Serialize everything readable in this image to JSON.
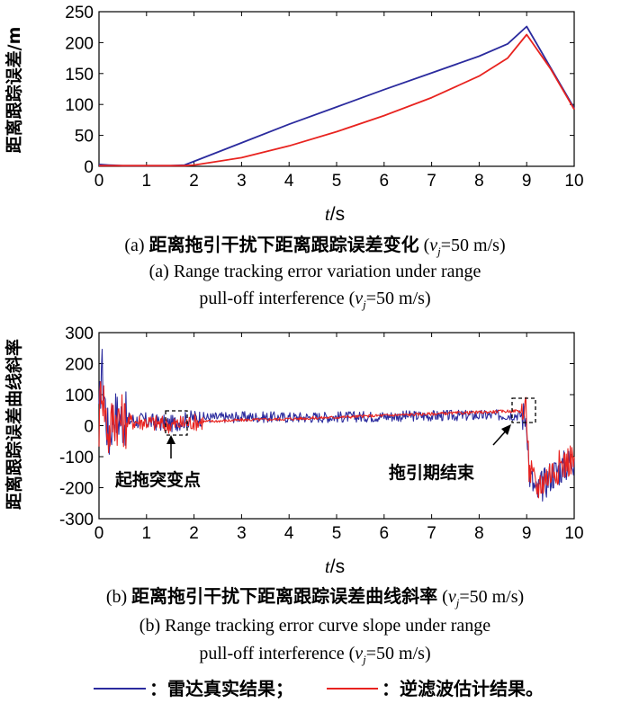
{
  "chart_data": [
    {
      "type": "line",
      "ylabel": "距离跟踪误差/m",
      "xlabel_var": "t",
      "xlabel_unit": "/s",
      "xlim": [
        0,
        10
      ],
      "ylim": [
        0,
        250
      ],
      "xticks": [
        "0",
        "1",
        "2",
        "3",
        "4",
        "5",
        "6",
        "7",
        "8",
        "9",
        "10"
      ],
      "yticks": [
        "0",
        "50",
        "100",
        "150",
        "200",
        "250"
      ],
      "series": [
        {
          "key": "blue",
          "color": "#2b2b9e",
          "x": [
            0,
            0.2,
            0.5,
            1.0,
            1.5,
            1.8,
            2.0,
            3.0,
            4.0,
            5.0,
            6.0,
            7.0,
            8.0,
            8.6,
            9.0,
            9.5,
            10.0
          ],
          "y": [
            3,
            2,
            1,
            1,
            1,
            2,
            8,
            38,
            68,
            96,
            124,
            151,
            178,
            198,
            226,
            160,
            94
          ]
        },
        {
          "key": "red",
          "color": "#e8231f",
          "x": [
            0,
            0.2,
            0.5,
            1.0,
            1.5,
            1.8,
            2.0,
            3.0,
            4.0,
            5.0,
            6.0,
            7.0,
            8.0,
            8.6,
            9.0,
            9.5,
            10.0
          ],
          "y": [
            1,
            1,
            1,
            1,
            1,
            1,
            2,
            14,
            33,
            56,
            82,
            111,
            146,
            175,
            213,
            158,
            92
          ]
        }
      ],
      "caption_cn_prefix": "(a) ",
      "caption_cn_main": "距离拖引干扰下距离跟踪误差变化",
      "caption_cn_suffix_pre": " (",
      "caption_cn_var": "v",
      "caption_cn_sub": "j",
      "caption_cn_suffix_post": "=50 m/s)",
      "caption_en_line1": "(a) Range tracking error variation under range",
      "caption_en_line2_pre": "pull-off interference (",
      "caption_en_var": "v",
      "caption_en_sub": "j",
      "caption_en_line2_post": "=50 m/s)"
    },
    {
      "type": "line",
      "ylabel": "距离跟踪误差曲线斜率",
      "xlabel_var": "t",
      "xlabel_unit": "/s",
      "xlim": [
        0,
        10
      ],
      "ylim": [
        -300,
        300
      ],
      "xticks": [
        "0",
        "1",
        "2",
        "3",
        "4",
        "5",
        "6",
        "7",
        "8",
        "9",
        "10"
      ],
      "yticks": [
        "300",
        "200",
        "100",
        "0",
        "-100",
        "-200",
        "-300"
      ],
      "annotations": [
        {
          "key": "start",
          "text": "起拖突变点",
          "x": 1.55,
          "y": 10
        },
        {
          "key": "end",
          "text": "拖引期结束",
          "x": 8.9,
          "y": 40
        }
      ],
      "series": [
        {
          "key": "blue",
          "color": "#2b2b9e",
          "x": [
            0,
            0.05,
            0.1,
            0.2,
            0.3,
            0.5,
            1.0,
            1.5,
            2.0,
            3.0,
            4.0,
            5.0,
            6.0,
            7.0,
            8.0,
            8.8,
            9.0,
            9.05,
            9.2,
            9.5,
            10.0
          ],
          "y": [
            0,
            200,
            120,
            -50,
            40,
            20,
            15,
            5,
            25,
            28,
            27,
            28,
            30,
            32,
            33,
            35,
            30,
            -150,
            -220,
            -160,
            -110
          ]
        },
        {
          "key": "red",
          "color": "#e8231f",
          "x": [
            0,
            0.05,
            0.1,
            0.2,
            0.3,
            0.5,
            1.0,
            1.5,
            2.0,
            3.0,
            4.0,
            5.0,
            6.0,
            7.0,
            8.0,
            8.8,
            9.0,
            9.05,
            9.2,
            9.5,
            10.0
          ],
          "y": [
            0,
            150,
            80,
            -30,
            30,
            15,
            12,
            2,
            12,
            18,
            22,
            27,
            33,
            38,
            43,
            48,
            40,
            -140,
            -200,
            -150,
            -100
          ]
        }
      ],
      "caption_cn_prefix": "(b) ",
      "caption_cn_main": "距离拖引干扰下距离跟踪误差曲线斜率",
      "caption_cn_suffix_pre": " (",
      "caption_cn_var": "v",
      "caption_cn_sub": "j",
      "caption_cn_suffix_post": "=50 m/s)",
      "caption_en_line1": "(b) Range tracking error curve slope under range",
      "caption_en_line2_pre": "pull-off interference (",
      "caption_en_var": "v",
      "caption_en_sub": "j",
      "caption_en_line2_post": "=50 m/s)"
    }
  ],
  "legend": {
    "blue_label": "：雷达真实结果；",
    "red_label": "：逆滤波估计结果。",
    "blue_color": "#2b2b9e",
    "red_color": "#e8231f"
  }
}
